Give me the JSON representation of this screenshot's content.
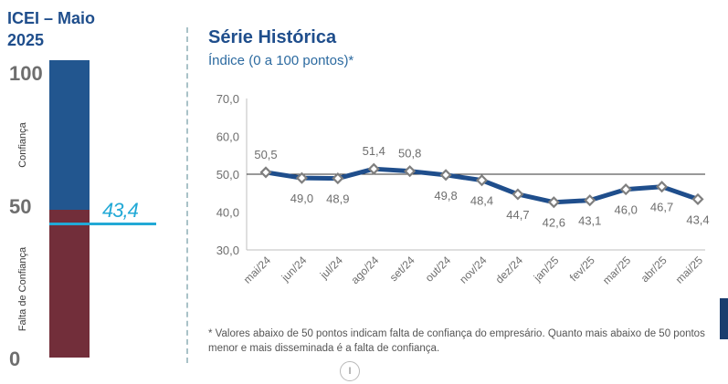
{
  "left_panel": {
    "title_line1": "ICEI – Maio",
    "title_line2": "2025",
    "scale_top": "100",
    "scale_mid": "50",
    "scale_bottom": "0",
    "label_top": "Confiança",
    "label_bottom": "Falta de Confiança",
    "current_value_label": "43,4",
    "current_value": 43.4,
    "colors": {
      "confidence": "#22568f",
      "lack_of_confidence": "#722e3a",
      "current_marker": "#22a9d6"
    }
  },
  "chart_title": "Série Histórica",
  "chart_subtitle": "Índice (0 a 100 pontos)*",
  "footnote": "* Valores abaixo de 50 pontos indicam falta de confiança do empresário. Quanto mais abaixo de 50 pontos menor e mais disseminada é a falta de confiança.",
  "page_marker": "I",
  "chart_data": {
    "type": "line",
    "categories": [
      "mai/24",
      "jun/24",
      "jul/24",
      "ago/24",
      "set/24",
      "out/24",
      "nov/24",
      "dez/24",
      "jan/25",
      "fev/25",
      "mar/25",
      "abr/25",
      "mai/25"
    ],
    "values": [
      50.5,
      49.0,
      48.9,
      51.4,
      50.8,
      49.8,
      48.4,
      44.7,
      42.6,
      43.1,
      46.0,
      46.7,
      43.4
    ],
    "value_labels": [
      "50,5",
      "49,0",
      "48,9",
      "51,4",
      "50,8",
      "49,8",
      "48,4",
      "44,7",
      "42,6",
      "43,1",
      "46,0",
      "46,7",
      "43,4"
    ],
    "label_positions": [
      "above",
      "below",
      "below",
      "above",
      "above",
      "below",
      "below",
      "below",
      "below",
      "below",
      "below",
      "below",
      "below"
    ],
    "y_ticks": [
      "70,0",
      "60,0",
      "50,0",
      "40,0",
      "30,0"
    ],
    "y_tick_values": [
      70,
      60,
      50,
      40,
      30
    ],
    "ylim": [
      30,
      70
    ],
    "reference_line": 50,
    "colors": {
      "line": "#1f4e8c",
      "marker_fill": "#ffffff",
      "marker_stroke": "#7f7f7f",
      "axis": "#bfbfbf"
    }
  }
}
